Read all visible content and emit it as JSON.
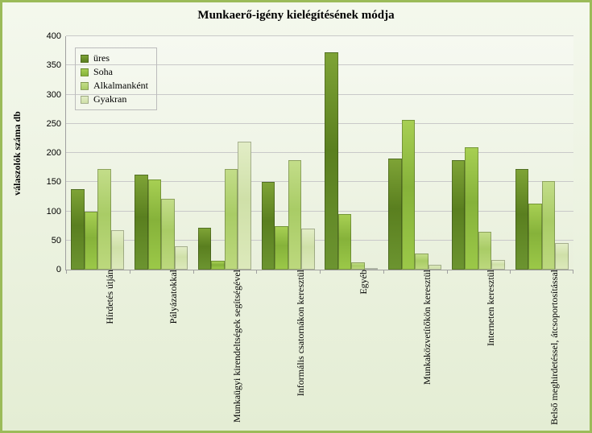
{
  "chart": {
    "title": "Munkaerő-igény kielégítésének módja",
    "title_fontsize": 15,
    "y_axis_label": "válaszolók száma db",
    "y_axis_label_fontsize": 12,
    "ylim": [
      0,
      400
    ],
    "ytick_step": 50,
    "yticks": [
      0,
      50,
      100,
      150,
      200,
      250,
      300,
      350,
      400
    ],
    "frame_border_color": "#9bbb59",
    "bg_gradient_top": "#f4f8ed",
    "bg_gradient_bottom": "#e4edd4",
    "plot_bg_gradient_top": "#f6f9f1",
    "plot_bg_gradient_bottom": "#e9f0dc",
    "grid_color": "#c9c9c9",
    "tick_font_size": 11,
    "cat_label_font_size": 12,
    "series": [
      {
        "name": "üres",
        "color_top": "#7ea336",
        "color_mid": "#5a7f1f",
        "color_bot": "#6c9430"
      },
      {
        "name": "Soha",
        "color_top": "#a7cf53",
        "color_mid": "#86b23a",
        "color_bot": "#9bc848"
      },
      {
        "name": "Alkalmanként",
        "color_top": "#c3dd89",
        "color_mid": "#a9cc66",
        "color_bot": "#bcd87d"
      },
      {
        "name": "Gyakran",
        "color_top": "#e2edc6",
        "color_mid": "#cfe0a8",
        "color_bot": "#dce9bb"
      }
    ],
    "categories": [
      {
        "label": "Hírdetés útján",
        "values": [
          138,
          100,
          173,
          68
        ]
      },
      {
        "label": "Pályázatokkal",
        "values": [
          163,
          155,
          122,
          40
        ]
      },
      {
        "label": "Munkaügyi kirendeltségek segítségével",
        "values": [
          72,
          15,
          173,
          220
        ]
      },
      {
        "label": "Informális csatornákon keresztül",
        "values": [
          150,
          75,
          187,
          70
        ]
      },
      {
        "label": "Egyéb",
        "values": [
          372,
          95,
          12,
          3
        ]
      },
      {
        "label": "Munkaközvetítőkön keresztül",
        "values": [
          190,
          257,
          27,
          8
        ]
      },
      {
        "label": "Interneten keresztül",
        "values": [
          187,
          210,
          65,
          17
        ]
      },
      {
        "label": "Belső meghirdetéssel, átcsoportosítással",
        "values": [
          172,
          113,
          152,
          45
        ]
      }
    ]
  }
}
